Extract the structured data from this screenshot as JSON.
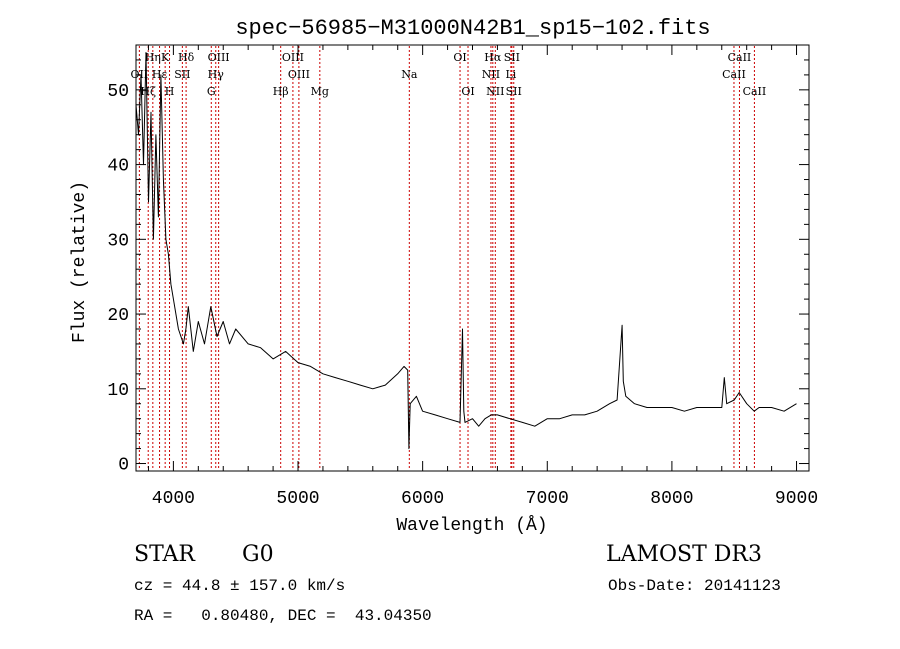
{
  "chart_data": {
    "type": "line",
    "title": "spec−56985−M31000N42B1_sp15−102.fits",
    "xlabel": "Wavelength (Å)",
    "ylabel": "Flux (relative)",
    "xlim": [
      3700,
      9100
    ],
    "ylim": [
      -1,
      56
    ],
    "xticks": [
      4000,
      5000,
      6000,
      7000,
      8000,
      9000
    ],
    "xtick_labels": [
      "4000",
      "5000",
      "6000",
      "7000",
      "8000",
      "9000"
    ],
    "yticks": [
      0,
      10,
      20,
      30,
      40,
      50
    ],
    "ytick_labels": [
      "0",
      "10",
      "20",
      "30",
      "40",
      "50"
    ],
    "line_color": "#000000",
    "marker_color": "#cc0000",
    "spectrum": {
      "x": [
        3700,
        3720,
        3740,
        3760,
        3780,
        3800,
        3820,
        3840,
        3860,
        3880,
        3900,
        3920,
        3940,
        3960,
        3980,
        4000,
        4040,
        4080,
        4100,
        4120,
        4160,
        4200,
        4250,
        4300,
        4350,
        4400,
        4450,
        4500,
        4600,
        4700,
        4800,
        4900,
        5000,
        5100,
        5200,
        5300,
        5400,
        5500,
        5600,
        5700,
        5800,
        5850,
        5880,
        5890,
        5900,
        5950,
        6000,
        6100,
        6200,
        6300,
        6320,
        6330,
        6340,
        6400,
        6450,
        6500,
        6550,
        6600,
        6700,
        6800,
        6900,
        7000,
        7100,
        7200,
        7300,
        7400,
        7500,
        7560,
        7600,
        7610,
        7630,
        7700,
        7800,
        7900,
        8000,
        8100,
        8200,
        8300,
        8400,
        8420,
        8440,
        8500,
        8540,
        8600,
        8660,
        8700,
        8800,
        8900,
        9000
      ],
      "y": [
        48,
        44,
        52,
        40,
        55,
        35,
        47,
        30,
        44,
        33,
        52,
        38,
        30,
        28,
        24,
        22,
        18,
        16,
        18,
        21,
        15,
        19,
        16,
        21,
        17,
        19,
        16,
        18,
        16,
        15.5,
        14,
        15,
        13.5,
        13,
        12,
        11.5,
        11,
        10.5,
        10,
        10.5,
        12,
        13,
        12.5,
        2,
        8,
        9,
        7,
        6.5,
        6,
        5.5,
        18,
        7,
        5.5,
        6,
        5,
        6,
        6.5,
        6.5,
        6,
        5.5,
        5,
        6,
        6,
        6.5,
        6.5,
        7,
        8,
        8.5,
        18.5,
        11,
        9,
        8,
        7.5,
        7.5,
        7.5,
        7,
        7.5,
        7.5,
        7.5,
        11.5,
        8,
        8.5,
        9.5,
        8,
        7,
        7.5,
        7.5,
        7,
        8
      ]
    },
    "line_markers": [
      {
        "label": "Hη",
        "x": 3835,
        "row": 1
      },
      {
        "label": "K",
        "x": 3934,
        "row": 1
      },
      {
        "label": "Hδ",
        "x": 4102,
        "row": 1
      },
      {
        "label": "OIII",
        "x": 4363,
        "row": 1
      },
      {
        "label": "OIII",
        "x": 4959,
        "row": 1
      },
      {
        "label": "OI",
        "x": 6300,
        "row": 1
      },
      {
        "label": "Hα",
        "x": 6563,
        "row": 1
      },
      {
        "label": "SII",
        "x": 6716,
        "row": 1
      },
      {
        "label": "CaII",
        "x": 8542,
        "row": 1
      },
      {
        "label": "OII",
        "x": 3727,
        "row": 2
      },
      {
        "label": "Hε",
        "x": 3889,
        "row": 2
      },
      {
        "label": "SII",
        "x": 4072,
        "row": 2
      },
      {
        "label": "Hγ",
        "x": 4340,
        "row": 2
      },
      {
        "label": "OIII",
        "x": 5007,
        "row": 2
      },
      {
        "label": "Na",
        "x": 5893,
        "row": 2
      },
      {
        "label": "NII",
        "x": 6548,
        "row": 2
      },
      {
        "label": "Li",
        "x": 6708,
        "row": 2
      },
      {
        "label": "CaII",
        "x": 8498,
        "row": 2
      },
      {
        "label": "Hζ",
        "x": 3798,
        "row": 3
      },
      {
        "label": "H",
        "x": 3969,
        "row": 3
      },
      {
        "label": "G",
        "x": 4304,
        "row": 3
      },
      {
        "label": "Hβ",
        "x": 4861,
        "row": 3
      },
      {
        "label": "Mg",
        "x": 5175,
        "row": 3
      },
      {
        "label": "OI",
        "x": 6364,
        "row": 3
      },
      {
        "label": "NII",
        "x": 6583,
        "row": 3
      },
      {
        "label": "SII",
        "x": 6731,
        "row": 3
      },
      {
        "label": "CaII",
        "x": 8662,
        "row": 3
      }
    ]
  },
  "info": {
    "class": "STAR",
    "subclass": "G0",
    "survey": "LAMOST DR3",
    "cz": "cz = 44.8 ± 157.0 km/s",
    "obs_date": "Obs-Date: 20141123",
    "coords": "RA =   0.80480, DEC =  43.04350"
  }
}
